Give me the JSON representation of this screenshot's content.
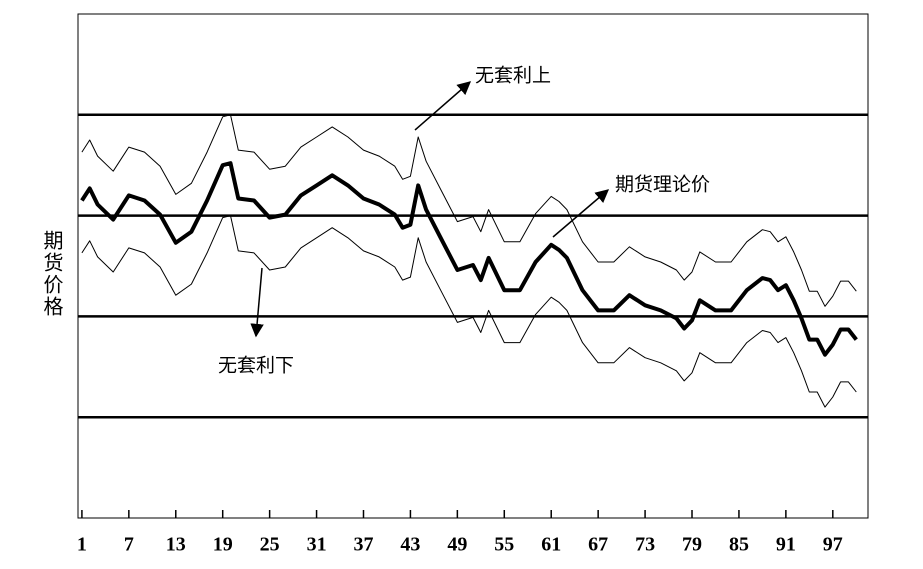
{
  "chart_data": {
    "type": "line",
    "ylabel": "期货价格",
    "x": [
      1,
      2,
      3,
      5,
      7,
      9,
      11,
      13,
      15,
      17,
      19,
      20,
      21,
      23,
      25,
      27,
      29,
      31,
      33,
      35,
      37,
      39,
      41,
      42,
      43,
      44,
      45,
      47,
      49,
      51,
      52,
      53,
      55,
      57,
      59,
      61,
      62,
      63,
      65,
      67,
      69,
      71,
      73,
      75,
      77,
      78,
      79,
      80,
      82,
      84,
      86,
      88,
      89,
      90,
      91,
      92,
      93,
      94,
      95,
      96,
      97,
      98,
      99,
      100
    ],
    "series": [
      {
        "color": "#000000",
        "width": 1,
        "values": [
          3.63,
          3.75,
          3.59,
          3.44,
          3.68,
          3.63,
          3.49,
          3.21,
          3.32,
          3.63,
          3.98,
          4.0,
          3.65,
          3.63,
          3.46,
          3.49,
          3.68,
          3.78,
          3.88,
          3.78,
          3.65,
          3.59,
          3.49,
          3.36,
          3.39,
          3.78,
          3.54,
          3.24,
          2.94,
          2.99,
          2.84,
          3.06,
          2.74,
          2.74,
          3.02,
          3.19,
          3.14,
          3.06,
          2.74,
          2.54,
          2.54,
          2.69,
          2.59,
          2.54,
          2.46,
          2.36,
          2.44,
          2.64,
          2.54,
          2.54,
          2.74,
          2.86,
          2.84,
          2.74,
          2.79,
          2.64,
          2.46,
          2.25,
          2.25,
          2.1,
          2.2,
          2.35,
          2.35,
          2.25
        ]
      },
      {
        "color": "#000000",
        "width": 4,
        "values": [
          3.15,
          3.27,
          3.11,
          2.96,
          3.2,
          3.15,
          3.01,
          2.73,
          2.84,
          3.15,
          3.5,
          3.52,
          3.17,
          3.15,
          2.98,
          3.01,
          3.2,
          3.3,
          3.4,
          3.3,
          3.17,
          3.11,
          3.01,
          2.88,
          2.91,
          3.3,
          3.06,
          2.76,
          2.46,
          2.51,
          2.36,
          2.58,
          2.26,
          2.26,
          2.54,
          2.71,
          2.66,
          2.58,
          2.26,
          2.06,
          2.06,
          2.21,
          2.11,
          2.06,
          1.98,
          1.88,
          1.96,
          2.16,
          2.06,
          2.06,
          2.26,
          2.38,
          2.36,
          2.26,
          2.31,
          2.16,
          1.98,
          1.77,
          1.77,
          1.62,
          1.72,
          1.87,
          1.87,
          1.77
        ]
      },
      {
        "color": "#000000",
        "width": 1,
        "values": [
          2.63,
          2.75,
          2.59,
          2.44,
          2.68,
          2.63,
          2.49,
          2.21,
          2.32,
          2.63,
          2.98,
          3.0,
          2.65,
          2.63,
          2.46,
          2.49,
          2.68,
          2.78,
          2.88,
          2.78,
          2.65,
          2.59,
          2.49,
          2.36,
          2.39,
          2.78,
          2.54,
          2.24,
          1.94,
          1.99,
          1.84,
          2.06,
          1.74,
          1.74,
          2.02,
          2.19,
          2.14,
          2.06,
          1.74,
          1.54,
          1.54,
          1.69,
          1.59,
          1.54,
          1.46,
          1.36,
          1.44,
          1.64,
          1.54,
          1.54,
          1.74,
          1.86,
          1.84,
          1.74,
          1.79,
          1.64,
          1.46,
          1.25,
          1.25,
          1.1,
          1.2,
          1.35,
          1.35,
          1.25
        ]
      }
    ],
    "xlim": [
      0.5,
      101.5
    ],
    "xticks": [
      1,
      7,
      13,
      19,
      25,
      31,
      37,
      43,
      49,
      55,
      61,
      67,
      73,
      79,
      85,
      91,
      97
    ],
    "ylim": [
      0,
      5
    ],
    "ygridlines": [
      1,
      2,
      3,
      4
    ],
    "annotations": [
      "无套利上",
      "期货理论价",
      "无套利下"
    ]
  }
}
